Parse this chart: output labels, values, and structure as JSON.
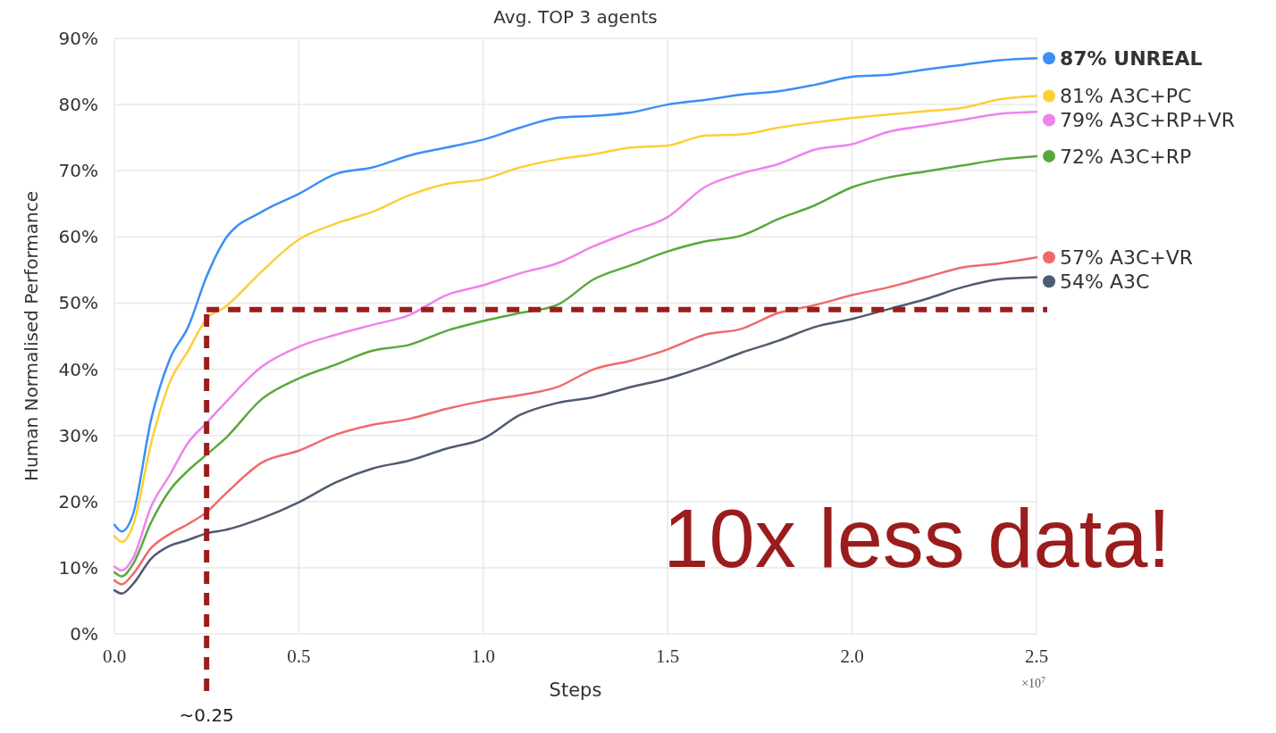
{
  "chart_data": {
    "type": "line",
    "title": "Avg.  TOP 3 agents",
    "xlabel": "Steps",
    "ylabel": "Human Normalised Performance",
    "x": [
      0,
      0.02,
      0.05,
      0.1,
      0.15,
      0.2,
      0.25,
      0.3,
      0.4,
      0.5,
      0.6,
      0.7,
      0.8,
      0.9,
      1.0,
      1.1,
      1.2,
      1.3,
      1.4,
      1.5,
      1.6,
      1.7,
      1.8,
      1.9,
      2.0,
      2.1,
      2.2,
      2.3,
      2.4,
      2.5
    ],
    "series": [
      {
        "name": "87% UNREAL",
        "color": "#3b8ff5",
        "values": [
          16.5,
          15.5,
          18,
          32.5,
          41.5,
          46.4,
          54,
          59.6,
          63.8,
          66.5,
          69.5,
          70.5,
          72.3,
          73.5,
          74.7,
          76.5,
          78,
          78.3,
          78.8,
          80,
          80.7,
          81.5,
          82,
          83,
          84.2,
          84.5,
          85.3,
          86,
          86.7,
          87
        ]
      },
      {
        "name": "81% A3C+PC",
        "color": "#fccf35",
        "values": [
          14.8,
          13.9,
          16.3,
          28.9,
          38,
          42.8,
          47.6,
          49.4,
          54.8,
          59.6,
          62,
          63.8,
          66.3,
          68,
          68.7,
          70.5,
          71.7,
          72.5,
          73.5,
          73.8,
          75.3,
          75.5,
          76.5,
          77.3,
          78,
          78.5,
          79,
          79.5,
          80.8,
          81.3
        ]
      },
      {
        "name": "79% A3C+RP+VR",
        "color": "#ef82ef",
        "values": [
          10.2,
          9.6,
          11.4,
          19.3,
          24,
          28.9,
          31.9,
          34.9,
          40.4,
          43.4,
          45.2,
          46.7,
          48.2,
          51.2,
          52.7,
          54.5,
          56,
          58.6,
          60.8,
          63,
          67.5,
          69.6,
          71,
          73.2,
          74,
          75.9,
          76.8,
          77.7,
          78.6,
          78.9
        ]
      },
      {
        "name": "72% A3C+RP",
        "color": "#5aa83c",
        "values": [
          9.3,
          8.7,
          10.5,
          16.9,
          21.7,
          24.7,
          27.1,
          29.5,
          35.5,
          38.6,
          40.7,
          42.8,
          43.7,
          45.8,
          47.3,
          48.5,
          49.7,
          53.6,
          55.7,
          57.8,
          59.3,
          60.2,
          62.7,
          64.8,
          67.5,
          69,
          69.9,
          70.8,
          71.7,
          72.2
        ]
      },
      {
        "name": "57% A3C+VR",
        "color": "#ef6b6b",
        "values": [
          8.1,
          7.5,
          9,
          13,
          15.1,
          16.6,
          18.4,
          21.1,
          25.9,
          27.7,
          30.1,
          31.6,
          32.5,
          34,
          35.2,
          36.1,
          37.3,
          40,
          41.3,
          43,
          45.2,
          46.1,
          48.5,
          49.7,
          51.2,
          52.4,
          53.9,
          55.4,
          56,
          56.9
        ]
      },
      {
        "name": "54% A3C",
        "color": "#4f5b70",
        "values": [
          6.6,
          6.1,
          7.5,
          11.4,
          13.3,
          14.2,
          15.2,
          15.7,
          17.5,
          19.9,
          22.9,
          25,
          26.2,
          28,
          29.5,
          33.1,
          34.9,
          35.8,
          37.3,
          38.6,
          40.4,
          42.5,
          44.3,
          46.4,
          47.6,
          49.1,
          50.6,
          52.4,
          53.6,
          53.9
        ]
      }
    ],
    "xlim": [
      0,
      2.5
    ],
    "xticks": [
      {
        "value": 0,
        "label": "0.0"
      },
      0.5,
      {
        "value": 1,
        "label": "1.0"
      },
      1.5,
      {
        "value": 2,
        "label": "2.0"
      },
      2.5
    ],
    "ylim": [
      0,
      90
    ],
    "yticks": [
      {
        "value": 0,
        "label": "0%"
      },
      {
        "value": 10,
        "label": "10%"
      },
      {
        "value": 20,
        "label": "20%"
      },
      {
        "value": 30,
        "label": "30%"
      },
      {
        "value": 40,
        "label": "40%"
      },
      {
        "value": 50,
        "label": "50%"
      },
      {
        "value": 60,
        "label": "60%"
      },
      {
        "value": 70,
        "label": "70%"
      },
      {
        "value": 80,
        "label": "80%"
      },
      {
        "value": 90,
        "label": "90%"
      }
    ],
    "grid": true,
    "legend": "right",
    "marker": "none",
    "line_style": "solid",
    "ref_lines": [
      {
        "axis": "x",
        "value": 0.25,
        "label": "~0.25",
        "color": "#9b1c1c",
        "line_style": "dashed"
      },
      {
        "axis": "y",
        "value": 49,
        "color": "#9b1c1c",
        "line_style": "dashed"
      }
    ],
    "annotations": [
      "10x less data!",
      "×10$^{7}$"
    ]
  }
}
